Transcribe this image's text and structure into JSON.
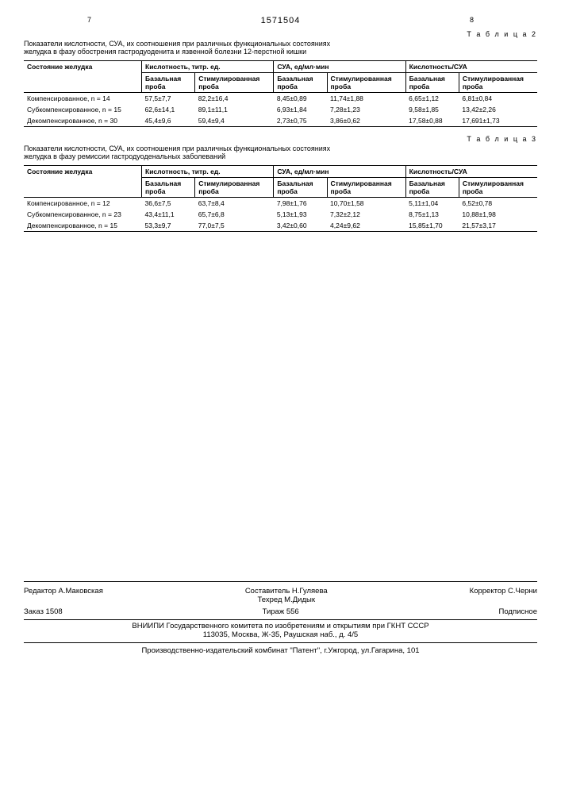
{
  "doc_number": "1571504",
  "page_left": "7",
  "page_right": "8",
  "table2": {
    "label": "Т а б л и ц а 2",
    "caption": "Показатели кислотности, СУА, их соотношения при различных функциональных состояниях желудка в фазу обострения гастродуоденита и язвенной болезни 12-перстной кишки",
    "col_state": "Состояние желудка",
    "group1": "Кислотность, титр. ед.",
    "group2": "СУА, ед/мл·мин",
    "group3": "Кислотность/СУА",
    "sub_basal": "Базальная проба",
    "sub_stim": "Стимулированная проба",
    "rows": [
      {
        "state": "Компенсированное, n = 14",
        "v": [
          "57,5±7,7",
          "82,2±16,4",
          "8,45±0,89",
          "11,74±1,88",
          "6,65±1,12",
          "6,81±0,84"
        ]
      },
      {
        "state": "Субкомпенсированное, n = 15",
        "v": [
          "62,6±14,1",
          "89,1±11,1",
          "6,93±1,84",
          "7,28±1,23",
          "9,58±1,85",
          "13,42±2,26"
        ]
      },
      {
        "state": "Декомпенсированное, n = 30",
        "v": [
          "45,4±9,6",
          "59,4±9,4",
          "2,73±0,75",
          "3,86±0,62",
          "17,58±0,88",
          "17,691±1,73"
        ]
      }
    ]
  },
  "table3": {
    "label": "Т а б л и ц а 3",
    "caption": "Показатели кислотности, СУА, их соотношения при различных функциональных состояниях желудка в фазу ремиссии гастродуоденальных заболеваний",
    "col_state": "Состояние желудка",
    "group1": "Кислотность, титр. ед.",
    "group2": "СУА, ед/мл·мин",
    "group3": "Кислотность/СУА",
    "sub_basal": "Базальная проба",
    "sub_stim": "Стимулированная проба",
    "rows": [
      {
        "state": "Компенсированное, n = 12",
        "v": [
          "36,6±7,5",
          "63,7±8,4",
          "7,98±1,76",
          "10,70±1,58",
          "5,11±1,04",
          "6,52±0,78"
        ]
      },
      {
        "state": "Субкомпенсированное, n = 23",
        "v": [
          "43,4±11,1",
          "65,7±6,8",
          "5,13±1,93",
          "7,32±2,12",
          "8,75±1,13",
          "10,88±1,98"
        ]
      },
      {
        "state": "Декомпенсированное, n = 15",
        "v": [
          "53,3±9,7",
          "77,0±7,5",
          "3,42±0,60",
          "4,24±9,62",
          "15,85±1,70",
          "21,57±3,17"
        ]
      }
    ]
  },
  "footer": {
    "compiler": "Составитель Н.Гуляева",
    "editor": "Редактор А.Маковская",
    "tech": "Техред М.Дидык",
    "corrector": "Корректор С.Черни",
    "order": "Заказ 1508",
    "tirage": "Тираж 556",
    "sign": "Подписное",
    "org": "ВНИИПИ Государственного комитета по изобретениям и открытиям при ГКНТ СССР",
    "addr": "113035, Москва, Ж-35, Раушская наб., д. 4/5",
    "bottom": "Производственно-издательский комбинат \"Патент\", г.Ужгород, ул.Гагарина, 101"
  }
}
